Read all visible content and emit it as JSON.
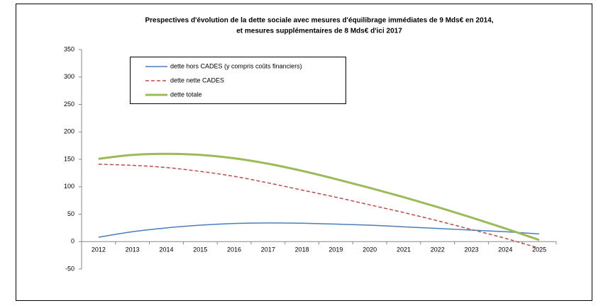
{
  "chart_data": {
    "type": "line",
    "title": [
      "Prespectives d'évolution de la dette sociale avec mesures  d'équilibrage immédiates de 9 Mds€ en 2014,",
      "et mesures supplémentaires de 8 Mds€ d'ici 2017"
    ],
    "categories": [
      "2012",
      "2013",
      "2014",
      "2015",
      "2016",
      "2017",
      "2018",
      "2019",
      "2020",
      "2021",
      "2022",
      "2023",
      "2024",
      "2025"
    ],
    "series": [
      {
        "name": "dette hors CADES (y compris coûts financiers)",
        "color": "#4a7ebb",
        "dashed": false,
        "width": 1.5,
        "values": [
          8,
          18,
          25,
          30,
          33,
          34,
          33.5,
          32,
          30,
          27,
          24,
          21,
          18,
          14
        ]
      },
      {
        "name": "dette nette CADES",
        "color": "#be4b48",
        "dashed": true,
        "width": 1.5,
        "values": [
          141,
          139,
          135,
          128,
          119,
          107,
          94,
          81,
          67,
          53,
          38,
          22,
          6,
          -12
        ]
      },
      {
        "name": "dette totale",
        "color": "#9bbb59",
        "dashed": false,
        "width": 3,
        "values": [
          151,
          158,
          160,
          158,
          152,
          142,
          129,
          114,
          98,
          81,
          63,
          44,
          24,
          3
        ]
      }
    ],
    "ylim": [
      -50,
      350
    ],
    "yticks": [
      -50,
      0,
      50,
      100,
      150,
      200,
      250,
      300,
      350
    ],
    "grid": false
  }
}
